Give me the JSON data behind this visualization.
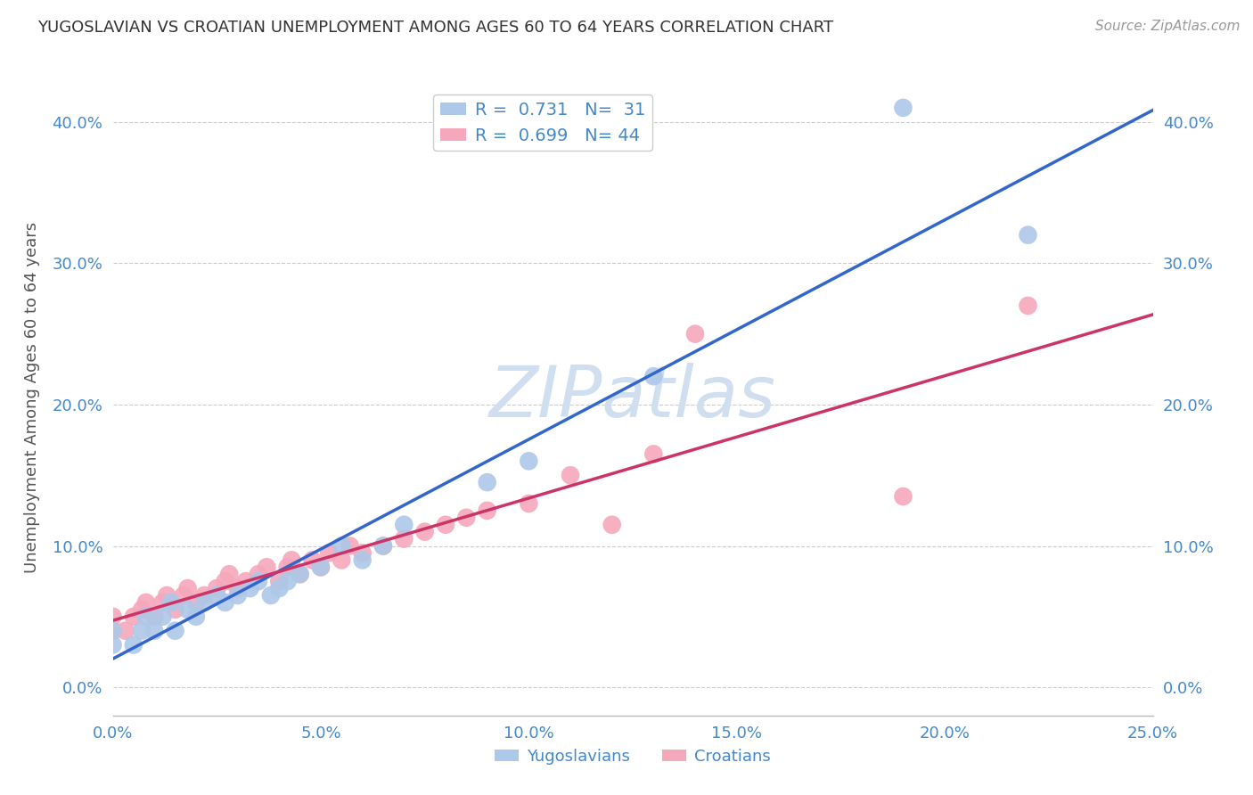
{
  "title": "YUGOSLAVIAN VS CROATIAN UNEMPLOYMENT AMONG AGES 60 TO 64 YEARS CORRELATION CHART",
  "source": "Source: ZipAtlas.com",
  "ylabel": "Unemployment Among Ages 60 to 64 years",
  "yug_R": 0.731,
  "yug_N": 31,
  "cro_R": 0.699,
  "cro_N": 44,
  "yug_color": "#adc8e8",
  "cro_color": "#f5a8bc",
  "yug_line_color": "#3366cc",
  "cro_line_color": "#cc3366",
  "watermark_top": "ZIP",
  "watermark_bot": "atlas",
  "watermark_color": "#d0dff0",
  "bg_color": "#ffffff",
  "grid_color": "#cccccc",
  "title_color": "#333333",
  "axis_tick_color": "#4488cc",
  "legend_text_color": "#4488cc",
  "xlim": [
    0.0,
    0.25
  ],
  "ylim": [
    -0.02,
    0.43
  ],
  "xtick_vals": [
    0.0,
    0.05,
    0.1,
    0.15,
    0.2,
    0.25
  ],
  "ytick_vals": [
    0.0,
    0.1,
    0.2,
    0.3,
    0.4
  ],
  "yug_scatter_x": [
    0.0,
    0.0,
    0.005,
    0.007,
    0.008,
    0.01,
    0.012,
    0.014,
    0.015,
    0.018,
    0.02,
    0.022,
    0.025,
    0.027,
    0.03,
    0.033,
    0.035,
    0.038,
    0.04,
    0.042,
    0.045,
    0.05,
    0.055,
    0.06,
    0.065,
    0.07,
    0.09,
    0.1,
    0.13,
    0.19,
    0.22
  ],
  "yug_scatter_y": [
    0.03,
    0.04,
    0.03,
    0.04,
    0.05,
    0.04,
    0.05,
    0.06,
    0.04,
    0.055,
    0.05,
    0.06,
    0.065,
    0.06,
    0.065,
    0.07,
    0.075,
    0.065,
    0.07,
    0.075,
    0.08,
    0.085,
    0.1,
    0.09,
    0.1,
    0.115,
    0.145,
    0.16,
    0.22,
    0.41,
    0.32
  ],
  "cro_scatter_x": [
    0.0,
    0.0,
    0.003,
    0.005,
    0.007,
    0.008,
    0.01,
    0.012,
    0.013,
    0.015,
    0.017,
    0.018,
    0.02,
    0.022,
    0.025,
    0.027,
    0.028,
    0.03,
    0.032,
    0.035,
    0.037,
    0.04,
    0.042,
    0.043,
    0.045,
    0.048,
    0.05,
    0.052,
    0.055,
    0.057,
    0.06,
    0.065,
    0.07,
    0.075,
    0.08,
    0.085,
    0.09,
    0.1,
    0.11,
    0.12,
    0.13,
    0.14,
    0.19,
    0.22
  ],
  "cro_scatter_y": [
    0.04,
    0.05,
    0.04,
    0.05,
    0.055,
    0.06,
    0.05,
    0.06,
    0.065,
    0.055,
    0.065,
    0.07,
    0.06,
    0.065,
    0.07,
    0.075,
    0.08,
    0.07,
    0.075,
    0.08,
    0.085,
    0.075,
    0.085,
    0.09,
    0.08,
    0.09,
    0.085,
    0.095,
    0.09,
    0.1,
    0.095,
    0.1,
    0.105,
    0.11,
    0.115,
    0.12,
    0.125,
    0.13,
    0.15,
    0.115,
    0.165,
    0.25,
    0.135,
    0.27
  ]
}
